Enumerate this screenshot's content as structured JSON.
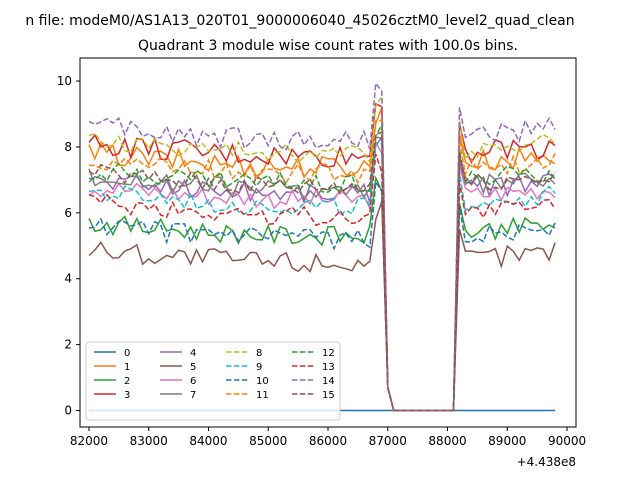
{
  "chart_data": {
    "type": "line",
    "suptitle": "n file: modeM0/AS1A13_020T01_9000006040_45026cztM0_level2_quad_clean",
    "title": "Quadrant 3 module wise count rates with 100.0s bins.",
    "xlabel": "",
    "ylabel": "",
    "x_offset_label": "+4.438e8",
    "xlim": [
      81850,
      90150
    ],
    "ylim": [
      -0.5,
      10.7
    ],
    "x_ticks": [
      82000,
      83000,
      84000,
      85000,
      86000,
      87000,
      88000,
      89000,
      90000
    ],
    "y_ticks": [
      0,
      2,
      4,
      6,
      8,
      10
    ],
    "x_tick_labels": [
      "82000",
      "83000",
      "84000",
      "85000",
      "86000",
      "87000",
      "88000",
      "89000",
      "90000"
    ],
    "y_tick_labels": [
      "0",
      "2",
      "4",
      "6",
      "8",
      "10"
    ],
    "legend_position": "lower-left",
    "grid": false,
    "series": [
      {
        "name": "0",
        "color": "#1f77b4",
        "dash": "solid",
        "level": 0.0,
        "amp": 0.0
      },
      {
        "name": "1",
        "color": "#ff7f0e",
        "dash": "solid",
        "level": 7.8,
        "amp": 0.35
      },
      {
        "name": "2",
        "color": "#2ca02c",
        "dash": "solid",
        "level": 5.7,
        "amp": 0.3
      },
      {
        "name": "3",
        "color": "#d62728",
        "dash": "solid",
        "level": 8.1,
        "amp": 0.35
      },
      {
        "name": "4",
        "color": "#9467bd",
        "dash": "solid",
        "level": 7.0,
        "amp": 0.3
      },
      {
        "name": "5",
        "color": "#8c564b",
        "dash": "solid",
        "level": 4.9,
        "amp": 0.35
      },
      {
        "name": "6",
        "color": "#e377c2",
        "dash": "solid",
        "level": 6.8,
        "amp": 0.3
      },
      {
        "name": "7",
        "color": "#7f7f7f",
        "dash": "solid",
        "level": 7.1,
        "amp": 0.3
      },
      {
        "name": "8",
        "color": "#bcbd22",
        "dash": "dashed",
        "level": 8.2,
        "amp": 0.3
      },
      {
        "name": "9",
        "color": "#17becf",
        "dash": "dashed",
        "level": 6.6,
        "amp": 0.3
      },
      {
        "name": "10",
        "color": "#1f77b4",
        "dash": "dashed",
        "level": 5.6,
        "amp": 0.3
      },
      {
        "name": "11",
        "color": "#ff7f0e",
        "dash": "dashed",
        "level": 7.6,
        "amp": 0.3
      },
      {
        "name": "12",
        "color": "#2ca02c",
        "dash": "dashed",
        "level": 7.3,
        "amp": 0.3
      },
      {
        "name": "13",
        "color": "#d62728",
        "dash": "dashed",
        "level": 6.3,
        "amp": 0.3
      },
      {
        "name": "14",
        "color": "#9467bd",
        "dash": "dashed",
        "level": 8.6,
        "amp": 0.35
      },
      {
        "name": "15",
        "color": "#8c564b",
        "dash": "dashed",
        "level": 7.2,
        "amp": 0.3
      }
    ],
    "gap": {
      "x_start": 86900,
      "x_bottom_start": 87100,
      "x_bottom_end": 88100,
      "x_end": 88200
    },
    "x_start": 82000,
    "x_end": 89800,
    "bin": 100
  }
}
